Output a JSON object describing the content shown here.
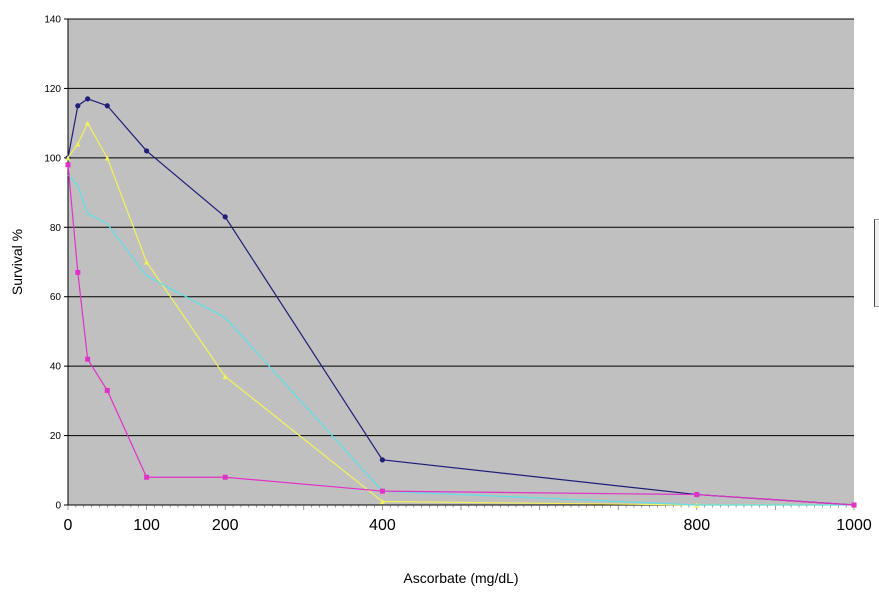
{
  "chart_data": {
    "type": "line",
    "title": "",
    "xlabel": "Ascorbate (mg/dL)",
    "ylabel": "Survival %",
    "x_categories": [
      "0",
      "12.5",
      "25",
      "50",
      "100",
      "200",
      "400",
      "800",
      "1000"
    ],
    "x_tick_labels": [
      "0",
      "100",
      "200",
      "400",
      "800",
      "1000"
    ],
    "y_ticks": [
      "0",
      "20",
      "40",
      "60",
      "80",
      "100",
      "120",
      "140"
    ],
    "ylim": [
      0,
      140
    ],
    "grid": "horizontal",
    "plot_background": "#c0c0c0",
    "series": [
      {
        "color": "#1f1f7a",
        "marker": "dot",
        "values": [
          100,
          115,
          117,
          115,
          102,
          83,
          13,
          3,
          0
        ]
      },
      {
        "color": "#f2f25a",
        "marker": "triangle",
        "values": [
          100,
          104,
          110,
          100,
          70,
          37,
          1,
          0,
          0
        ]
      },
      {
        "color": "#5ee0e8",
        "marker": "none",
        "values": [
          95,
          92,
          84,
          81,
          66,
          54,
          4,
          0,
          0
        ]
      },
      {
        "color": "#e032c8",
        "marker": "square",
        "values": [
          98,
          67,
          42,
          33,
          8,
          8,
          4,
          3,
          0
        ]
      }
    ]
  }
}
